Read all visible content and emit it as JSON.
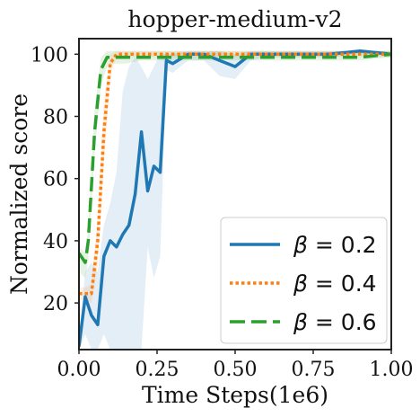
{
  "chart_data": {
    "type": "line",
    "title": "hopper-medium-v2",
    "xlabel": "Time Steps(1e6)",
    "ylabel": "Normalized score",
    "xlim": [
      0.0,
      1.0
    ],
    "ylim": [
      5,
      105
    ],
    "x_ticks": [
      "0.00",
      "0.25",
      "0.50",
      "0.75",
      "1.00"
    ],
    "y_ticks": [
      "20",
      "40",
      "60",
      "80",
      "100"
    ],
    "grid": false,
    "legend_position": "lower-right",
    "series": [
      {
        "name": "β = 0.2",
        "legend_symbol": "β",
        "legend_value": "= 0.2",
        "color": "#1f77b4",
        "style": "solid",
        "x": [
          0.0,
          0.02,
          0.04,
          0.06,
          0.08,
          0.1,
          0.12,
          0.14,
          0.16,
          0.18,
          0.2,
          0.22,
          0.24,
          0.26,
          0.28,
          0.3,
          0.35,
          0.4,
          0.45,
          0.5,
          0.55,
          0.6,
          0.7,
          0.8,
          0.9,
          1.0
        ],
        "y": [
          6,
          22,
          16,
          13,
          35,
          40,
          38,
          42,
          45,
          55,
          75,
          56,
          64,
          62,
          98,
          97,
          100,
          100,
          98,
          96,
          100,
          100,
          100,
          100,
          101,
          100
        ],
        "band_upper": [
          9,
          30,
          33,
          30,
          45,
          52,
          62,
          88,
          96,
          99,
          96,
          92,
          96,
          100,
          100,
          100,
          101,
          101,
          101,
          100,
          101,
          101,
          101,
          101,
          101,
          101
        ],
        "band_lower": [
          5,
          10,
          5,
          5,
          10,
          5,
          5,
          5,
          5,
          5,
          5,
          38,
          28,
          35,
          95,
          94,
          98,
          98,
          93,
          92,
          98,
          99,
          99,
          99,
          100,
          99
        ]
      },
      {
        "name": "β = 0.4",
        "legend_symbol": "β",
        "legend_value": "= 0.4",
        "color": "#ff7f0e",
        "style": "dotted",
        "x": [
          0.0,
          0.02,
          0.04,
          0.06,
          0.08,
          0.1,
          0.12,
          0.15,
          0.2,
          0.3,
          0.4,
          0.5,
          0.6,
          0.7,
          0.8,
          0.9,
          1.0
        ],
        "y": [
          23,
          23,
          23,
          40,
          75,
          97,
          100,
          100,
          100,
          100,
          100,
          100,
          100,
          100,
          100,
          100,
          100
        ],
        "band_upper": [
          25,
          25,
          26,
          48,
          85,
          100,
          101,
          101,
          101,
          101,
          101,
          101,
          101,
          101,
          101,
          101,
          101
        ],
        "band_lower": [
          21,
          21,
          20,
          32,
          65,
          93,
          99,
          99,
          99,
          99,
          99,
          99,
          99,
          99,
          99,
          99,
          99
        ]
      },
      {
        "name": "β = 0.6",
        "legend_symbol": "β",
        "legend_value": "= 0.6",
        "color": "#2ca02c",
        "style": "dashed",
        "x": [
          0.0,
          0.02,
          0.03,
          0.05,
          0.07,
          0.09,
          0.11,
          0.15,
          0.2,
          0.3,
          0.4,
          0.5,
          0.6,
          0.7,
          0.8,
          0.9,
          1.0
        ],
        "y": [
          36,
          33,
          40,
          75,
          95,
          99,
          99,
          99,
          99,
          99,
          99,
          99,
          99,
          99,
          99,
          99,
          100
        ],
        "band_upper": [
          38,
          36,
          44,
          82,
          99,
          101,
          101,
          101,
          101,
          101,
          101,
          101,
          101,
          101,
          101,
          101,
          101
        ],
        "band_lower": [
          30,
          28,
          34,
          68,
          90,
          96,
          97,
          97,
          98,
          98,
          98,
          98,
          98,
          98,
          98,
          98,
          99
        ]
      }
    ]
  }
}
